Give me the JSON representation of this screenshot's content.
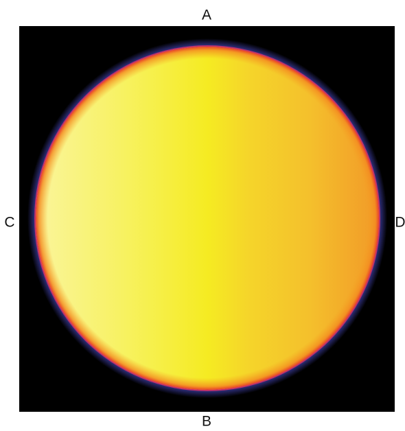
{
  "labels": {
    "top": "A",
    "bottom": "B",
    "left": "C",
    "right": "D"
  }
}
